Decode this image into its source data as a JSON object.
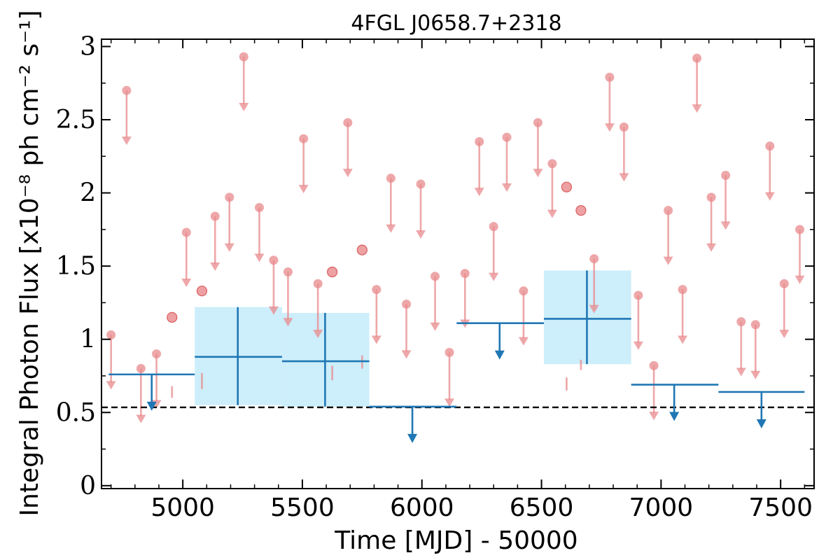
{
  "chart_data": {
    "type": "scatter",
    "title": "4FGL J0658.7+2318",
    "xlabel": "Time [MJD] - 50000",
    "ylabel": "Integral Photon Flux [x10⁻⁸ ph cm⁻² s⁻¹]",
    "xlim": [
      4660,
      7640
    ],
    "ylim": [
      -0.02,
      3.05
    ],
    "x_ticks": [
      5000,
      5500,
      6000,
      6500,
      7000,
      7500
    ],
    "x_tick_labels": [
      "5000",
      "5500",
      "6000",
      "6500",
      "7000",
      "7500"
    ],
    "y_ticks": [
      0,
      0.5,
      1,
      1.5,
      2,
      2.5,
      3
    ],
    "y_tick_labels": [
      "0",
      "0.5",
      "1",
      "1.5",
      "2",
      "2.5",
      "3"
    ],
    "reference_line": {
      "y": 0.535,
      "style": "dashed",
      "color": "#000000"
    },
    "series": [
      {
        "label_visible": false,
        "color": "#e88a8c",
        "upper_limits": [
          [
            4700,
            1.03
          ],
          [
            4765,
            2.7
          ],
          [
            4825,
            0.8
          ],
          [
            4890,
            0.9
          ],
          [
            5015,
            1.73
          ],
          [
            5135,
            1.84
          ],
          [
            5195,
            1.97
          ],
          [
            5255,
            2.93
          ],
          [
            5320,
            1.9
          ],
          [
            5380,
            1.54
          ],
          [
            5440,
            1.46
          ],
          [
            5505,
            2.37
          ],
          [
            5565,
            1.38
          ],
          [
            5690,
            2.48
          ],
          [
            5810,
            1.34
          ],
          [
            5870,
            2.1
          ],
          [
            5935,
            1.24
          ],
          [
            5995,
            2.06
          ],
          [
            6055,
            1.43
          ],
          [
            6115,
            0.91
          ],
          [
            6180,
            1.45
          ],
          [
            6240,
            2.35
          ],
          [
            6300,
            1.77
          ],
          [
            6355,
            2.38
          ],
          [
            6425,
            1.33
          ],
          [
            6485,
            2.48
          ],
          [
            6545,
            2.2
          ],
          [
            6720,
            1.55
          ],
          [
            6785,
            2.79
          ],
          [
            6845,
            2.45
          ],
          [
            6905,
            1.3
          ],
          [
            6970,
            0.82
          ],
          [
            7030,
            1.88
          ],
          [
            7090,
            1.34
          ],
          [
            7150,
            2.92
          ],
          [
            7210,
            1.97
          ],
          [
            7270,
            2.12
          ],
          [
            7335,
            1.12
          ],
          [
            7395,
            1.1
          ],
          [
            7455,
            2.32
          ],
          [
            7515,
            1.38
          ],
          [
            7580,
            1.75
          ]
        ],
        "upper_limit_arrow_length": 0.32,
        "detections": [
          [
            4955,
            1.15,
            0.6,
            0.68
          ],
          [
            5080,
            1.33,
            0.66,
            0.77
          ],
          [
            5625,
            1.46,
            0.72,
            0.82
          ],
          [
            5750,
            1.61,
            0.8,
            0.89
          ],
          [
            6605,
            2.04,
            0.65,
            0.74
          ],
          [
            6665,
            1.88,
            0.79,
            0.86
          ]
        ]
      },
      {
        "label_visible": false,
        "color": "#1f77b4",
        "band_color": "#cdeefb",
        "binned_detections": [
          [
            5230,
            5050,
            5415,
            0.88,
            0.55,
            1.22
          ],
          [
            5595,
            5415,
            5780,
            0.85,
            0.54,
            1.18
          ],
          [
            6690,
            6510,
            6875,
            1.14,
            0.83,
            1.47
          ]
        ],
        "binned_upper_limits": [
          [
            4870,
            4690,
            5050,
            0.76
          ],
          [
            5960,
            5780,
            6145,
            0.54
          ],
          [
            6325,
            6145,
            6510,
            1.11
          ],
          [
            7055,
            6875,
            7240,
            0.69
          ],
          [
            7420,
            7240,
            7600,
            0.64
          ]
        ]
      }
    ]
  }
}
